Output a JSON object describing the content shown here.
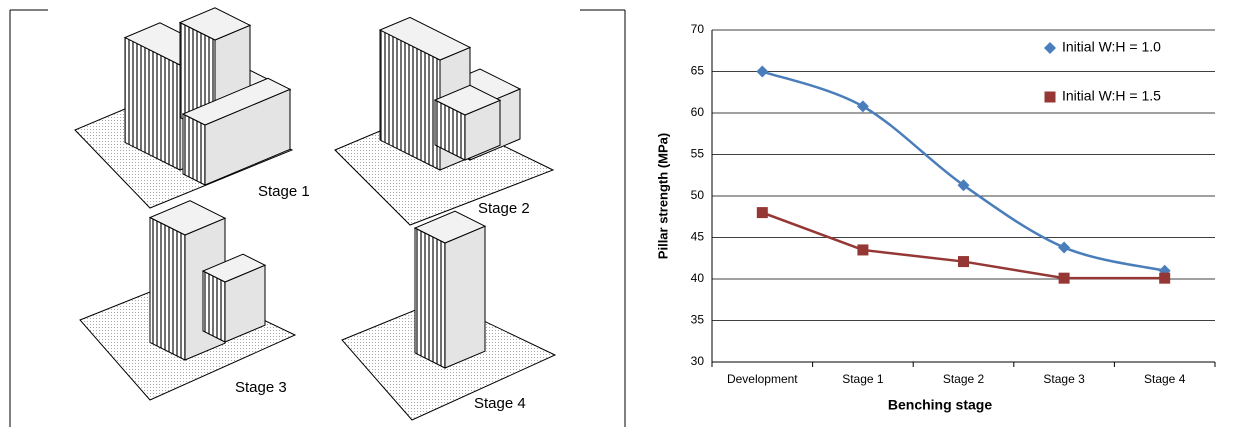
{
  "diagram_labels": [
    "Stage 1",
    "Stage 2",
    "Stage 3",
    "Stage 4"
  ],
  "chart_data": {
    "type": "line",
    "y_label": "Pillar strength (MPa)",
    "x_label": "Benching stage",
    "categories": [
      "Development",
      "Stage 1",
      "Stage 2",
      "Stage 3",
      "Stage 4"
    ],
    "series": [
      {
        "name": "Initial W:H = 1.0",
        "color": "#4a7ebb",
        "marker": "diamond",
        "smooth": true,
        "values": [
          65,
          60.8,
          51.3,
          43.8,
          41
        ]
      },
      {
        "name": "Initial W:H = 1.5",
        "color": "#953735",
        "marker": "square",
        "smooth": false,
        "values": [
          48,
          43.5,
          42.1,
          40.1,
          40.1
        ]
      }
    ],
    "ylim": [
      30,
      70
    ],
    "yticks": [
      30,
      35,
      40,
      45,
      50,
      55,
      60,
      65,
      70
    ],
    "grid": true,
    "legend": "upper right"
  }
}
